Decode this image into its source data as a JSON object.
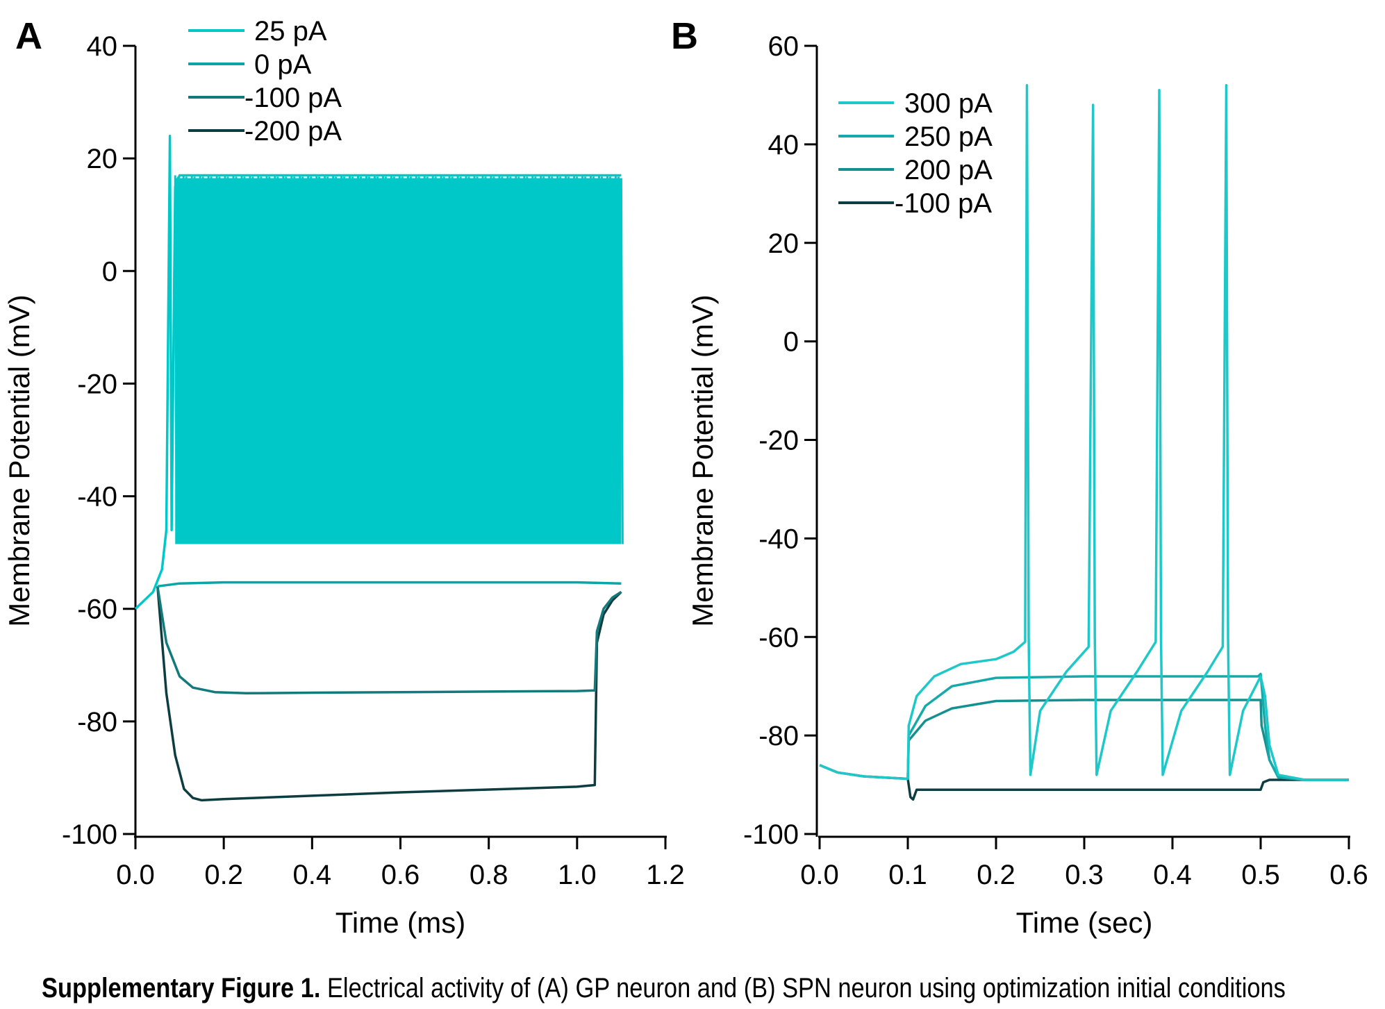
{
  "figure": {
    "caption_bold": "Supplementary Figure 1.",
    "caption_text": " Electrical activity of (A) GP neuron and (B) SPN neuron using optimization initial conditions"
  },
  "chart_data": [
    {
      "panel": "A",
      "type": "line",
      "xlabel": "Time (ms)",
      "ylabel": "Membrane Potential (mV)",
      "xlim": [
        0,
        1.2
      ],
      "ylim": [
        -100,
        40
      ],
      "xticks": [
        0.0,
        0.2,
        0.4,
        0.6,
        0.8,
        1.0,
        1.2
      ],
      "xtick_labels": [
        "0.0",
        "0.2",
        "0.4",
        "0.6",
        "0.8",
        "1.0",
        "1.2"
      ],
      "yticks": [
        40,
        20,
        0,
        -20,
        -40,
        -60,
        -80,
        -100
      ],
      "ytick_labels": [
        "40",
        "20",
        "0",
        "-20",
        "-40",
        "-60",
        "-80",
        "-100"
      ],
      "grid": false,
      "legend_position": "top-left",
      "series": [
        {
          "name": "25 pA",
          "color": "#00c8c8",
          "style": "spiking",
          "x": [
            0.0,
            0.02,
            0.04,
            0.06,
            0.07,
            0.078,
            0.082,
            0.09,
            0.1,
            1.1
          ],
          "y": [
            -60,
            -58.5,
            -57,
            -53,
            -46,
            24,
            -46,
            15,
            17,
            17
          ],
          "burst": {
            "x_start": 0.09,
            "x_end": 1.1,
            "peak": 17,
            "trough": -48.5
          }
        },
        {
          "name": "0 pA",
          "color": "#0aa5a5",
          "x": [
            0.05,
            0.1,
            0.2,
            0.4,
            0.6,
            0.8,
            1.0,
            1.1
          ],
          "y": [
            -56,
            -55.5,
            -55.3,
            -55.3,
            -55.3,
            -55.3,
            -55.3,
            -55.5
          ]
        },
        {
          "name": "-100 pA",
          "color": "#127a7a",
          "x": [
            0.05,
            0.07,
            0.1,
            0.13,
            0.18,
            0.25,
            0.4,
            0.6,
            0.8,
            1.0,
            1.04,
            1.045,
            1.06,
            1.08,
            1.1
          ],
          "y": [
            -56,
            -66,
            -72,
            -74,
            -74.8,
            -75,
            -74.9,
            -74.8,
            -74.7,
            -74.6,
            -74.5,
            -64,
            -60,
            -58,
            -57
          ]
        },
        {
          "name": "-200 pA",
          "color": "#0d3d40",
          "x": [
            0.05,
            0.07,
            0.09,
            0.11,
            0.13,
            0.15,
            0.2,
            0.4,
            0.6,
            0.8,
            1.0,
            1.04,
            1.045,
            1.06,
            1.08,
            1.1
          ],
          "y": [
            -56,
            -75,
            -86,
            -92,
            -93.6,
            -94,
            -93.8,
            -93.2,
            -92.6,
            -92.1,
            -91.6,
            -91.3,
            -66,
            -61,
            -58.5,
            -57
          ]
        }
      ]
    },
    {
      "panel": "B",
      "type": "line",
      "xlabel": "Time (sec)",
      "ylabel": "Membrane Potential (mV)",
      "xlim": [
        0,
        0.6
      ],
      "ylim": [
        -100,
        60
      ],
      "xticks": [
        0.0,
        0.1,
        0.2,
        0.3,
        0.4,
        0.5,
        0.6
      ],
      "xtick_labels": [
        "0.0",
        "0.1",
        "0.2",
        "0.3",
        "0.4",
        "0.5",
        "0.6"
      ],
      "yticks": [
        60,
        40,
        20,
        0,
        -20,
        -40,
        -60,
        -80,
        -100
      ],
      "ytick_labels": [
        "60",
        "40",
        "20",
        "0",
        "-20",
        "-40",
        "-60",
        "-80",
        "-100"
      ],
      "grid": false,
      "legend_position": "top-left",
      "series": [
        {
          "name": "300 pA",
          "color": "#1ec8c8",
          "x": [
            0.0,
            0.02,
            0.05,
            0.1,
            0.101,
            0.11,
            0.13,
            0.16,
            0.2,
            0.22,
            0.233,
            0.235,
            0.237,
            0.239,
            0.25,
            0.28,
            0.305,
            0.31,
            0.312,
            0.314,
            0.33,
            0.36,
            0.381,
            0.385,
            0.387,
            0.389,
            0.41,
            0.44,
            0.457,
            0.461,
            0.463,
            0.465,
            0.48,
            0.5,
            0.505,
            0.51,
            0.52,
            0.55,
            0.6
          ],
          "y": [
            -86,
            -87.5,
            -88.3,
            -88.8,
            -78,
            -72,
            -68,
            -65.5,
            -64.5,
            -63,
            -61,
            52,
            -60,
            -88,
            -75,
            -67,
            -62,
            48,
            -60,
            -88,
            -75,
            -67,
            -61,
            51,
            -60,
            -88,
            -75,
            -67,
            -62,
            52,
            -60,
            -88,
            -75,
            -68,
            -72,
            -82,
            -88,
            -89,
            -89
          ]
        },
        {
          "name": "250 pA",
          "color": "#17a9a9",
          "x": [
            0.1,
            0.101,
            0.12,
            0.15,
            0.2,
            0.3,
            0.4,
            0.497,
            0.5,
            0.505,
            0.51,
            0.52,
            0.55,
            0.6
          ],
          "y": [
            -88.8,
            -80,
            -74,
            -70,
            -68.3,
            -68,
            -68,
            -68,
            -67.5,
            -78,
            -85,
            -88.5,
            -89,
            -89
          ]
        },
        {
          "name": "200 pA",
          "color": "#139090",
          "x": [
            0.1,
            0.101,
            0.12,
            0.15,
            0.2,
            0.3,
            0.4,
            0.5,
            0.501,
            0.51,
            0.52,
            0.55,
            0.6
          ],
          "y": [
            -88.8,
            -81,
            -77,
            -74.5,
            -73,
            -72.8,
            -72.8,
            -72.8,
            -78,
            -85,
            -88.5,
            -89,
            -89
          ]
        },
        {
          "name": "-100 pA",
          "color": "#0d3d40",
          "x": [
            0.0,
            0.02,
            0.05,
            0.1,
            0.103,
            0.106,
            0.11,
            0.2,
            0.3,
            0.4,
            0.5,
            0.503,
            0.51,
            0.55,
            0.6
          ],
          "y": [
            -86,
            -87.5,
            -88.3,
            -88.8,
            -92.5,
            -93,
            -91,
            -91,
            -91,
            -91,
            -91,
            -89.5,
            -89,
            -89,
            -89
          ]
        }
      ]
    }
  ]
}
